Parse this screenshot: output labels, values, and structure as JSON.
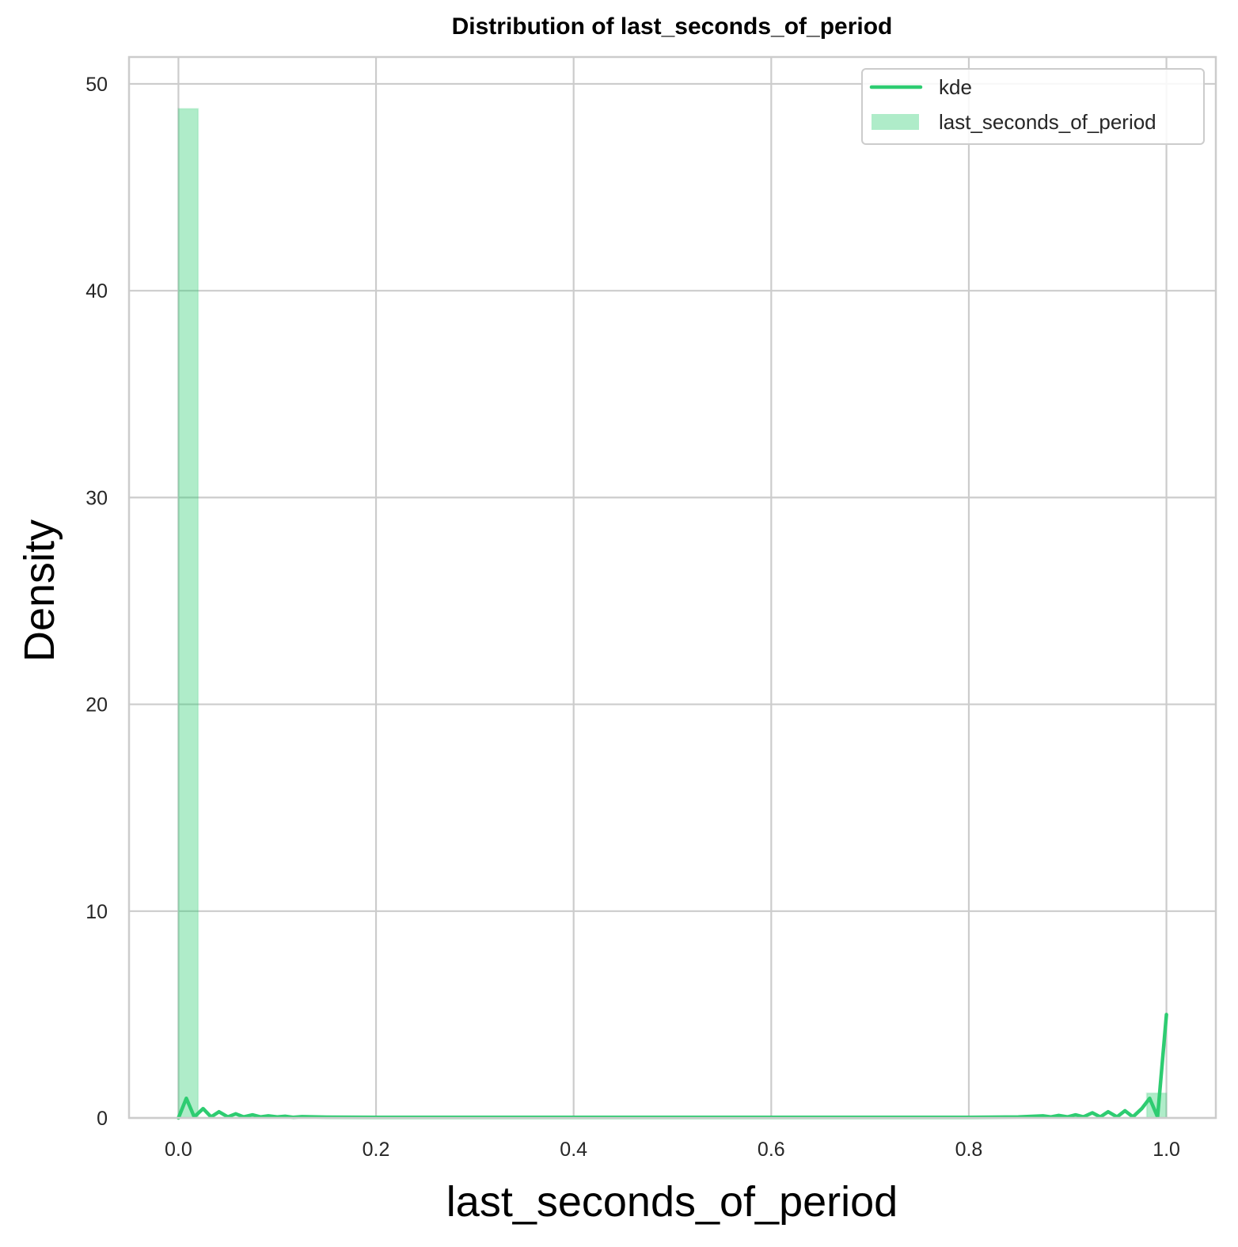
{
  "chart_data": {
    "type": "histogram+kde",
    "title": "Distribution of last_seconds_of_period",
    "xlabel": "last_seconds_of_period",
    "ylabel": "Density",
    "xlim": [
      -0.05,
      1.05
    ],
    "ylim": [
      0,
      51.3
    ],
    "x_ticks": [
      0.0,
      0.2,
      0.4,
      0.6,
      0.8,
      1.0
    ],
    "x_tick_labels": [
      "0.0",
      "0.2",
      "0.4",
      "0.6",
      "0.8",
      "1.0"
    ],
    "y_ticks": [
      0,
      10,
      20,
      30,
      40,
      50
    ],
    "y_tick_labels": [
      "0",
      "10",
      "20",
      "30",
      "40",
      "50"
    ],
    "grid": true,
    "legend_position": "top-right",
    "colors": {
      "kde": "#2ecc71",
      "hist_fill": "#2ecc71",
      "hist_opacity": 0.38,
      "grid": "#cccccc",
      "frame": "#cccccc"
    },
    "legend": {
      "entries": [
        {
          "label": "kde",
          "kind": "line"
        },
        {
          "label": "last_seconds_of_period",
          "kind": "patch"
        }
      ]
    },
    "histogram": {
      "bins": [
        {
          "x0": 0.0,
          "x1": 0.02,
          "density": 48.8
        },
        {
          "x0": 0.98,
          "x1": 1.0,
          "density": 1.2
        }
      ]
    },
    "kde": {
      "x": [
        0.0,
        0.008,
        0.016,
        0.025,
        0.033,
        0.041,
        0.05,
        0.058,
        0.066,
        0.075,
        0.083,
        0.091,
        0.1,
        0.108,
        0.116,
        0.125,
        0.15,
        0.2,
        0.3,
        0.4,
        0.5,
        0.6,
        0.7,
        0.8,
        0.85,
        0.875,
        0.883,
        0.891,
        0.9,
        0.908,
        0.916,
        0.925,
        0.933,
        0.941,
        0.95,
        0.958,
        0.966,
        0.975,
        0.983,
        0.991,
        1.0
      ],
      "y": [
        0.0,
        0.95,
        0.05,
        0.45,
        0.05,
        0.3,
        0.05,
        0.2,
        0.05,
        0.15,
        0.05,
        0.1,
        0.05,
        0.08,
        0.03,
        0.06,
        0.04,
        0.03,
        0.03,
        0.03,
        0.03,
        0.03,
        0.03,
        0.03,
        0.05,
        0.1,
        0.05,
        0.12,
        0.05,
        0.15,
        0.05,
        0.25,
        0.05,
        0.3,
        0.05,
        0.35,
        0.05,
        0.45,
        0.95,
        0.05,
        5.0
      ]
    }
  }
}
